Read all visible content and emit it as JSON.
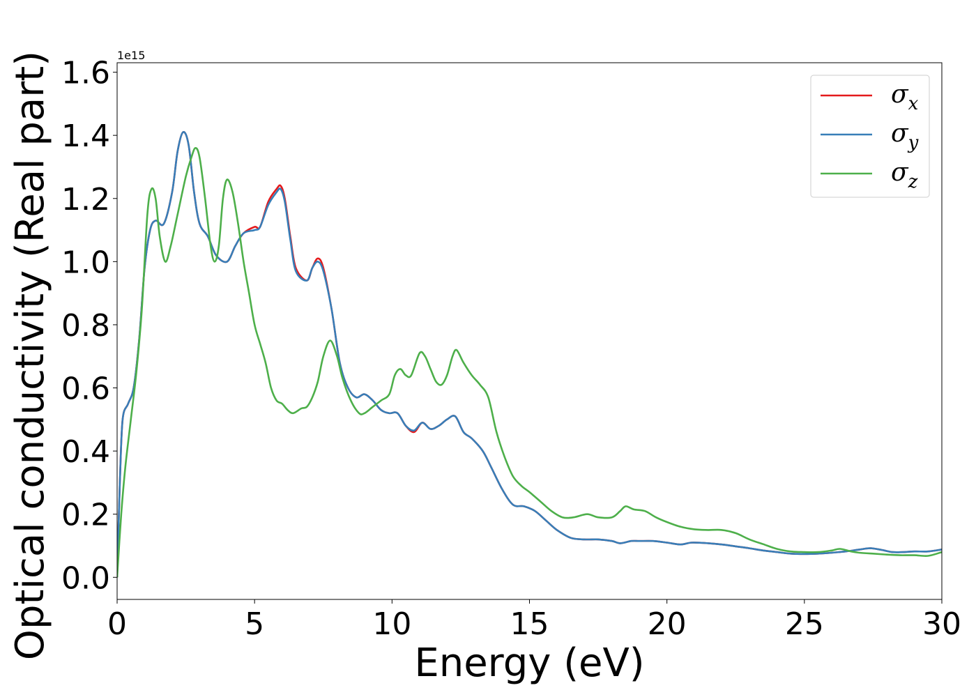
{
  "chart_data": {
    "type": "line",
    "xlabel": "Energy (eV)",
    "ylabel": "Optical conductivity (Real part)",
    "y_offset_label": "1e15",
    "xlim": [
      0,
      30
    ],
    "ylim": [
      -0.07,
      1.63
    ],
    "x_ticks": [
      0,
      5,
      10,
      15,
      20,
      25,
      30
    ],
    "y_ticks": [
      0.0,
      0.2,
      0.4,
      0.6,
      0.8,
      1.0,
      1.2,
      1.4,
      1.6
    ],
    "x_tick_labels": [
      "0",
      "5",
      "10",
      "15",
      "20",
      "25",
      "30"
    ],
    "y_tick_labels": [
      "0.0",
      "0.2",
      "0.4",
      "0.6",
      "0.8",
      "1.0",
      "1.2",
      "1.4",
      "1.6"
    ],
    "grid": false,
    "legend_position": "top-right",
    "series": [
      {
        "name": "σx",
        "legend_base": "σ",
        "legend_sub": "x",
        "color": "#e41a1c",
        "points": [
          [
            0,
            0.0
          ],
          [
            0.1,
            0.3
          ],
          [
            0.2,
            0.5
          ],
          [
            0.4,
            0.55
          ],
          [
            0.6,
            0.6
          ],
          [
            0.8,
            0.75
          ],
          [
            1.0,
            0.98
          ],
          [
            1.2,
            1.1
          ],
          [
            1.4,
            1.13
          ],
          [
            1.7,
            1.12
          ],
          [
            2.0,
            1.22
          ],
          [
            2.2,
            1.35
          ],
          [
            2.4,
            1.41
          ],
          [
            2.6,
            1.37
          ],
          [
            2.8,
            1.22
          ],
          [
            3.0,
            1.12
          ],
          [
            3.3,
            1.08
          ],
          [
            3.6,
            1.02
          ],
          [
            4.0,
            1.0
          ],
          [
            4.3,
            1.05
          ],
          [
            4.6,
            1.09
          ],
          [
            5.0,
            1.11
          ],
          [
            5.2,
            1.11
          ],
          [
            5.5,
            1.19
          ],
          [
            5.8,
            1.23
          ],
          [
            5.95,
            1.24
          ],
          [
            6.1,
            1.2
          ],
          [
            6.3,
            1.08
          ],
          [
            6.5,
            0.98
          ],
          [
            6.9,
            0.94
          ],
          [
            7.1,
            0.98
          ],
          [
            7.3,
            1.01
          ],
          [
            7.5,
            0.98
          ],
          [
            7.8,
            0.85
          ],
          [
            8.1,
            0.68
          ],
          [
            8.4,
            0.6
          ],
          [
            8.7,
            0.57
          ],
          [
            9.0,
            0.58
          ],
          [
            9.3,
            0.56
          ],
          [
            9.6,
            0.53
          ],
          [
            9.9,
            0.52
          ],
          [
            10.2,
            0.52
          ],
          [
            10.5,
            0.48
          ],
          [
            10.8,
            0.46
          ],
          [
            11.1,
            0.49
          ],
          [
            11.4,
            0.47
          ],
          [
            11.7,
            0.48
          ],
          [
            12.0,
            0.5
          ],
          [
            12.3,
            0.51
          ],
          [
            12.6,
            0.46
          ],
          [
            12.9,
            0.44
          ],
          [
            13.3,
            0.4
          ],
          [
            13.6,
            0.35
          ],
          [
            14.0,
            0.28
          ],
          [
            14.4,
            0.23
          ],
          [
            14.8,
            0.225
          ],
          [
            15.2,
            0.21
          ],
          [
            15.6,
            0.18
          ],
          [
            16.0,
            0.15
          ],
          [
            16.5,
            0.125
          ],
          [
            17.0,
            0.12
          ],
          [
            17.5,
            0.12
          ],
          [
            18.0,
            0.115
          ],
          [
            18.3,
            0.108
          ],
          [
            18.7,
            0.115
          ],
          [
            19.0,
            0.115
          ],
          [
            19.5,
            0.115
          ],
          [
            20.0,
            0.11
          ],
          [
            20.5,
            0.104
          ],
          [
            20.9,
            0.11
          ],
          [
            21.5,
            0.108
          ],
          [
            22.0,
            0.104
          ],
          [
            22.5,
            0.098
          ],
          [
            23.0,
            0.092
          ],
          [
            23.5,
            0.085
          ],
          [
            24.0,
            0.08
          ],
          [
            24.5,
            0.075
          ],
          [
            25.0,
            0.074
          ],
          [
            25.5,
            0.075
          ],
          [
            26.0,
            0.078
          ],
          [
            26.5,
            0.082
          ],
          [
            27.0,
            0.088
          ],
          [
            27.4,
            0.092
          ],
          [
            27.8,
            0.087
          ],
          [
            28.2,
            0.08
          ],
          [
            28.6,
            0.08
          ],
          [
            29.0,
            0.082
          ],
          [
            29.5,
            0.082
          ],
          [
            30.0,
            0.088
          ]
        ]
      },
      {
        "name": "σy",
        "legend_base": "σ",
        "legend_sub": "y",
        "color": "#377eb8",
        "points": [
          [
            0,
            0.0
          ],
          [
            0.1,
            0.3
          ],
          [
            0.2,
            0.5
          ],
          [
            0.4,
            0.55
          ],
          [
            0.6,
            0.6
          ],
          [
            0.8,
            0.75
          ],
          [
            1.0,
            0.98
          ],
          [
            1.2,
            1.1
          ],
          [
            1.4,
            1.13
          ],
          [
            1.7,
            1.12
          ],
          [
            2.0,
            1.22
          ],
          [
            2.2,
            1.35
          ],
          [
            2.4,
            1.41
          ],
          [
            2.6,
            1.37
          ],
          [
            2.8,
            1.22
          ],
          [
            3.0,
            1.12
          ],
          [
            3.3,
            1.08
          ],
          [
            3.6,
            1.02
          ],
          [
            4.0,
            1.0
          ],
          [
            4.3,
            1.05
          ],
          [
            4.6,
            1.09
          ],
          [
            5.0,
            1.1
          ],
          [
            5.2,
            1.11
          ],
          [
            5.5,
            1.18
          ],
          [
            5.8,
            1.22
          ],
          [
            5.95,
            1.23
          ],
          [
            6.1,
            1.19
          ],
          [
            6.3,
            1.07
          ],
          [
            6.5,
            0.97
          ],
          [
            6.9,
            0.94
          ],
          [
            7.1,
            0.98
          ],
          [
            7.3,
            1.0
          ],
          [
            7.5,
            0.97
          ],
          [
            7.8,
            0.85
          ],
          [
            8.1,
            0.68
          ],
          [
            8.4,
            0.6
          ],
          [
            8.7,
            0.57
          ],
          [
            9.0,
            0.58
          ],
          [
            9.3,
            0.56
          ],
          [
            9.6,
            0.53
          ],
          [
            9.9,
            0.52
          ],
          [
            10.2,
            0.52
          ],
          [
            10.5,
            0.48
          ],
          [
            10.8,
            0.465
          ],
          [
            11.1,
            0.49
          ],
          [
            11.4,
            0.47
          ],
          [
            11.7,
            0.48
          ],
          [
            12.0,
            0.5
          ],
          [
            12.3,
            0.51
          ],
          [
            12.6,
            0.46
          ],
          [
            12.9,
            0.44
          ],
          [
            13.3,
            0.4
          ],
          [
            13.6,
            0.35
          ],
          [
            14.0,
            0.28
          ],
          [
            14.4,
            0.23
          ],
          [
            14.8,
            0.225
          ],
          [
            15.2,
            0.21
          ],
          [
            15.6,
            0.18
          ],
          [
            16.0,
            0.15
          ],
          [
            16.5,
            0.125
          ],
          [
            17.0,
            0.12
          ],
          [
            17.5,
            0.12
          ],
          [
            18.0,
            0.115
          ],
          [
            18.3,
            0.108
          ],
          [
            18.7,
            0.115
          ],
          [
            19.0,
            0.115
          ],
          [
            19.5,
            0.115
          ],
          [
            20.0,
            0.11
          ],
          [
            20.5,
            0.104
          ],
          [
            20.9,
            0.11
          ],
          [
            21.5,
            0.108
          ],
          [
            22.0,
            0.104
          ],
          [
            22.5,
            0.098
          ],
          [
            23.0,
            0.092
          ],
          [
            23.5,
            0.085
          ],
          [
            24.0,
            0.08
          ],
          [
            24.5,
            0.075
          ],
          [
            25.0,
            0.074
          ],
          [
            25.5,
            0.075
          ],
          [
            26.0,
            0.078
          ],
          [
            26.5,
            0.082
          ],
          [
            27.0,
            0.088
          ],
          [
            27.4,
            0.092
          ],
          [
            27.8,
            0.087
          ],
          [
            28.2,
            0.08
          ],
          [
            28.6,
            0.08
          ],
          [
            29.0,
            0.082
          ],
          [
            29.5,
            0.082
          ],
          [
            30.0,
            0.088
          ]
        ]
      },
      {
        "name": "σz",
        "legend_base": "σ",
        "legend_sub": "z",
        "color": "#4daf4a",
        "points": [
          [
            0,
            0.0
          ],
          [
            0.15,
            0.2
          ],
          [
            0.3,
            0.35
          ],
          [
            0.5,
            0.5
          ],
          [
            0.7,
            0.65
          ],
          [
            0.9,
            0.85
          ],
          [
            1.1,
            1.15
          ],
          [
            1.25,
            1.23
          ],
          [
            1.4,
            1.2
          ],
          [
            1.55,
            1.08
          ],
          [
            1.75,
            1.0
          ],
          [
            1.95,
            1.05
          ],
          [
            2.2,
            1.15
          ],
          [
            2.5,
            1.27
          ],
          [
            2.7,
            1.33
          ],
          [
            2.85,
            1.36
          ],
          [
            3.0,
            1.33
          ],
          [
            3.2,
            1.2
          ],
          [
            3.4,
            1.05
          ],
          [
            3.55,
            1.0
          ],
          [
            3.7,
            1.05
          ],
          [
            3.85,
            1.2
          ],
          [
            4.0,
            1.26
          ],
          [
            4.2,
            1.22
          ],
          [
            4.4,
            1.12
          ],
          [
            4.6,
            1.0
          ],
          [
            4.8,
            0.9
          ],
          [
            5.0,
            0.8
          ],
          [
            5.2,
            0.74
          ],
          [
            5.4,
            0.68
          ],
          [
            5.6,
            0.6
          ],
          [
            5.8,
            0.56
          ],
          [
            6.0,
            0.55
          ],
          [
            6.2,
            0.53
          ],
          [
            6.4,
            0.52
          ],
          [
            6.7,
            0.535
          ],
          [
            6.9,
            0.54
          ],
          [
            7.1,
            0.57
          ],
          [
            7.3,
            0.62
          ],
          [
            7.5,
            0.7
          ],
          [
            7.75,
            0.75
          ],
          [
            8.0,
            0.7
          ],
          [
            8.2,
            0.63
          ],
          [
            8.5,
            0.56
          ],
          [
            8.8,
            0.52
          ],
          [
            9.0,
            0.52
          ],
          [
            9.3,
            0.54
          ],
          [
            9.6,
            0.56
          ],
          [
            9.9,
            0.58
          ],
          [
            10.1,
            0.64
          ],
          [
            10.3,
            0.66
          ],
          [
            10.5,
            0.64
          ],
          [
            10.7,
            0.64
          ],
          [
            11.0,
            0.71
          ],
          [
            11.2,
            0.7
          ],
          [
            11.4,
            0.66
          ],
          [
            11.6,
            0.62
          ],
          [
            11.8,
            0.61
          ],
          [
            12.0,
            0.64
          ],
          [
            12.2,
            0.7
          ],
          [
            12.35,
            0.72
          ],
          [
            12.6,
            0.68
          ],
          [
            12.9,
            0.64
          ],
          [
            13.2,
            0.61
          ],
          [
            13.5,
            0.57
          ],
          [
            13.8,
            0.46
          ],
          [
            14.1,
            0.38
          ],
          [
            14.4,
            0.32
          ],
          [
            14.7,
            0.29
          ],
          [
            15.0,
            0.27
          ],
          [
            15.4,
            0.24
          ],
          [
            15.8,
            0.21
          ],
          [
            16.2,
            0.19
          ],
          [
            16.6,
            0.19
          ],
          [
            17.1,
            0.2
          ],
          [
            17.5,
            0.19
          ],
          [
            18.0,
            0.19
          ],
          [
            18.3,
            0.21
          ],
          [
            18.5,
            0.225
          ],
          [
            18.8,
            0.215
          ],
          [
            19.2,
            0.21
          ],
          [
            19.6,
            0.19
          ],
          [
            20.0,
            0.175
          ],
          [
            20.5,
            0.16
          ],
          [
            21.0,
            0.152
          ],
          [
            21.5,
            0.15
          ],
          [
            22.0,
            0.15
          ],
          [
            22.5,
            0.14
          ],
          [
            23.0,
            0.12
          ],
          [
            23.5,
            0.105
          ],
          [
            24.0,
            0.09
          ],
          [
            24.5,
            0.082
          ],
          [
            25.0,
            0.08
          ],
          [
            25.5,
            0.08
          ],
          [
            26.0,
            0.085
          ],
          [
            26.3,
            0.09
          ],
          [
            26.7,
            0.082
          ],
          [
            27.0,
            0.078
          ],
          [
            27.5,
            0.075
          ],
          [
            28.0,
            0.072
          ],
          [
            28.5,
            0.07
          ],
          [
            29.0,
            0.07
          ],
          [
            29.5,
            0.068
          ],
          [
            30.0,
            0.08
          ]
        ]
      }
    ]
  }
}
